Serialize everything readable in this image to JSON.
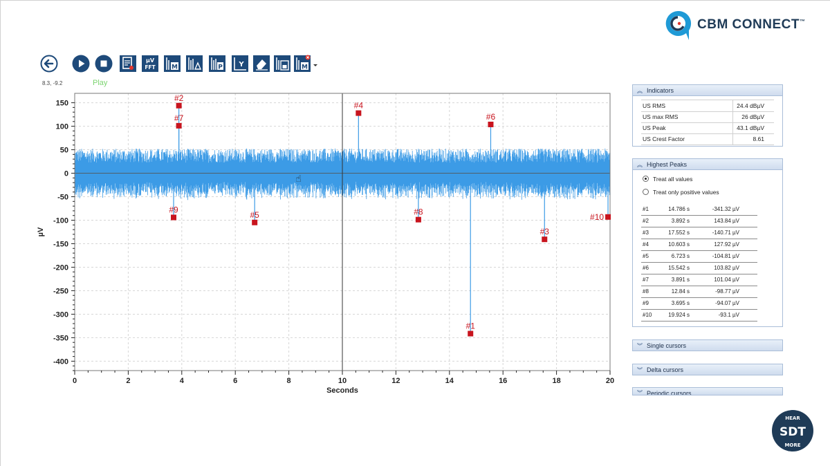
{
  "brand": {
    "name": "CBM CONNECT",
    "tm": "™",
    "badge_main": "SDT",
    "badge_top": "HEAR",
    "badge_bottom": "MORE"
  },
  "toolbar": {
    "buttons": [
      {
        "name": "back-button",
        "icon": "arrow-left-icon"
      },
      {
        "name": "play-button",
        "icon": "play-icon"
      },
      {
        "name": "stop-button",
        "icon": "stop-icon"
      },
      {
        "name": "export-button",
        "icon": "export-doc-icon"
      },
      {
        "name": "fft-button",
        "icon": "fft-icon",
        "label": "µV FFT"
      },
      {
        "name": "markers-button",
        "icon": "marker-m-icon",
        "label": "M"
      },
      {
        "name": "delta-button",
        "icon": "delta-icon",
        "label": "Δ"
      },
      {
        "name": "periodic-button",
        "icon": "periodic-icon",
        "label": "P"
      },
      {
        "name": "y-axis-button",
        "icon": "y-axis-icon",
        "label": "Y"
      },
      {
        "name": "erase-button",
        "icon": "eraser-icon"
      },
      {
        "name": "save-button",
        "icon": "save-icon"
      },
      {
        "name": "marker-remove-button",
        "icon": "marker-remove-icon",
        "label": "M"
      }
    ],
    "coord_readout": "8.3, -9.2",
    "play_label": "Play"
  },
  "chart_data": {
    "type": "line",
    "xlabel": "Seconds",
    "ylabel": "µV",
    "xlim": [
      0,
      20
    ],
    "ylim": [
      -420,
      170
    ],
    "xticks": [
      0,
      2,
      4,
      6,
      8,
      10,
      12,
      14,
      16,
      18,
      20
    ],
    "yticks": [
      150,
      100,
      50,
      0,
      -50,
      -100,
      -150,
      -200,
      -250,
      -300,
      -350,
      -400
    ],
    "grid": true,
    "signal_band": [
      -50,
      50
    ],
    "series_color": "#3c9be6",
    "marker_color": "#c8141e",
    "cursor_x": 10,
    "peaks": [
      {
        "label": "#1",
        "x": 14.786,
        "y": -341.32
      },
      {
        "label": "#2",
        "x": 3.892,
        "y": 143.84
      },
      {
        "label": "#3",
        "x": 17.552,
        "y": -140.71
      },
      {
        "label": "#4",
        "x": 10.603,
        "y": 127.92
      },
      {
        "label": "#5",
        "x": 6.723,
        "y": -104.81
      },
      {
        "label": "#6",
        "x": 15.542,
        "y": 103.82
      },
      {
        "label": "#7",
        "x": 3.891,
        "y": 101.04
      },
      {
        "label": "#8",
        "x": 12.84,
        "y": -98.77
      },
      {
        "label": "#9",
        "x": 3.695,
        "y": -94.07
      },
      {
        "label": "#10",
        "x": 19.924,
        "y": -93.1
      }
    ]
  },
  "indicators": {
    "title": "Indicators",
    "rows": [
      {
        "label": "US RMS",
        "value": "24.4 dBµV"
      },
      {
        "label": "US max RMS",
        "value": "26 dBµV"
      },
      {
        "label": "US Peak",
        "value": "43.1 dBµV"
      },
      {
        "label": "US Crest Factor",
        "value": "8.61"
      }
    ]
  },
  "highest_peaks": {
    "title": "Highest Peaks",
    "options": [
      {
        "label": "Treat all values",
        "selected": true
      },
      {
        "label": "Treat only positive values",
        "selected": false
      }
    ],
    "rows": [
      {
        "id": "#1",
        "time": "14.786 s",
        "value": "-341.32 µV"
      },
      {
        "id": "#2",
        "time": "3.892 s",
        "value": "143.84 µV"
      },
      {
        "id": "#3",
        "time": "17.552 s",
        "value": "-140.71 µV"
      },
      {
        "id": "#4",
        "time": "10.603 s",
        "value": "127.92 µV"
      },
      {
        "id": "#5",
        "time": "6.723 s",
        "value": "-104.81 µV"
      },
      {
        "id": "#6",
        "time": "15.542 s",
        "value": "103.82 µV"
      },
      {
        "id": "#7",
        "time": "3.891 s",
        "value": "101.04 µV"
      },
      {
        "id": "#8",
        "time": "12.84 s",
        "value": "-98.77 µV"
      },
      {
        "id": "#9",
        "time": "3.695 s",
        "value": "-94.07 µV"
      },
      {
        "id": "#10",
        "time": "19.924 s",
        "value": "-93.1 µV"
      }
    ]
  },
  "collapsed_panels": [
    "Single cursors",
    "Delta cursors",
    "Periodic cursors"
  ]
}
